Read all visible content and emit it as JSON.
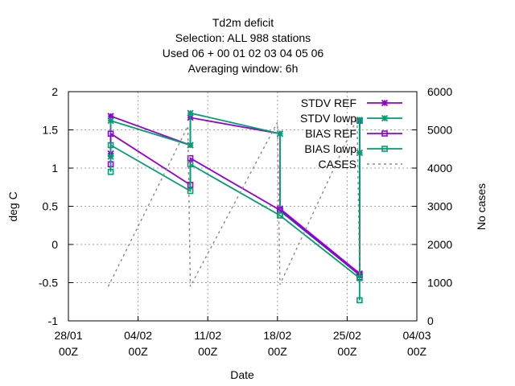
{
  "chart_data": {
    "type": "line",
    "title_lines": [
      "Td2m deficit",
      "Selection: ALL    988 stations",
      "Used  06  + 00 01 02 03 04 05 06",
      "Averaging window:  6h"
    ],
    "xlabel": "Date",
    "ylabel": "deg C",
    "y2label": "No cases",
    "xlim": [
      0,
      35
    ],
    "ylim": [
      -1,
      2
    ],
    "y2lim": [
      0,
      6000
    ],
    "x_ticks": [
      {
        "x": 0,
        "l1": "28/01",
        "l2": "00Z"
      },
      {
        "x": 7,
        "l1": "04/02",
        "l2": "00Z"
      },
      {
        "x": 14,
        "l1": "11/02",
        "l2": "00Z"
      },
      {
        "x": 21,
        "l1": "18/02",
        "l2": "00Z"
      },
      {
        "x": 28,
        "l1": "25/02",
        "l2": "00Z"
      },
      {
        "x": 35,
        "l1": "04/03",
        "l2": "00Z"
      }
    ],
    "y_ticks": [
      "-1",
      "-0.5",
      "0",
      "0.5",
      "1",
      "1.5",
      "2"
    ],
    "y2_ticks": [
      "0",
      "1000",
      "2000",
      "3000",
      "4000",
      "5000",
      "6000"
    ],
    "grid": true,
    "legend_position": "top-right",
    "series": [
      {
        "name": "STDV REF",
        "axis": "y",
        "color": "#9400d3",
        "marker": "star",
        "points": [
          [
            4.25,
            1.19
          ],
          [
            4.25,
            1.68
          ],
          [
            12.25,
            1.3
          ],
          [
            12.25,
            1.66
          ],
          [
            21.25,
            1.45
          ],
          [
            21.25,
            0.47
          ],
          [
            29.25,
            -0.38
          ],
          [
            29.25,
            1.2
          ],
          [
            29.25,
            1.62
          ]
        ]
      },
      {
        "name": "STDV lowp",
        "axis": "y",
        "color": "#009e73",
        "marker": "star",
        "points": [
          [
            4.25,
            1.15
          ],
          [
            4.25,
            1.62
          ],
          [
            12.25,
            1.3
          ],
          [
            12.25,
            1.72
          ],
          [
            21.25,
            1.45
          ],
          [
            21.25,
            0.44
          ],
          [
            29.25,
            -0.4
          ],
          [
            29.25,
            1.2
          ],
          [
            29.25,
            1.63
          ]
        ]
      },
      {
        "name": "BIAS REF",
        "axis": "y",
        "color": "#9400d3",
        "marker": "square",
        "points": [
          [
            4.25,
            1.05
          ],
          [
            4.25,
            1.45
          ],
          [
            12.25,
            0.78
          ],
          [
            12.25,
            1.13
          ],
          [
            21.25,
            0.45
          ],
          [
            21.25,
            0.45
          ],
          [
            29.25,
            -0.4
          ],
          [
            29.25,
            -0.43
          ],
          [
            29.25,
            1.62
          ]
        ]
      },
      {
        "name": "BIAS lowp",
        "axis": "y",
        "color": "#009e73",
        "marker": "square",
        "points": [
          [
            4.25,
            0.95
          ],
          [
            4.25,
            1.3
          ],
          [
            12.25,
            0.7
          ],
          [
            12.25,
            1.05
          ],
          [
            21.25,
            0.38
          ],
          [
            21.25,
            0.38
          ],
          [
            29.25,
            -0.44
          ],
          [
            29.25,
            -0.73
          ],
          [
            29.25,
            1.62
          ]
        ]
      },
      {
        "name": "CASES",
        "axis": "y2",
        "color": "#888888",
        "marker": "none",
        "dashed": true,
        "points": [
          [
            4.0,
            900
          ],
          [
            12.0,
            5100
          ],
          [
            12.25,
            900
          ],
          [
            21.0,
            5200
          ],
          [
            21.25,
            950
          ],
          [
            29.0,
            5300
          ],
          [
            29.25,
            1100
          ]
        ]
      }
    ]
  }
}
